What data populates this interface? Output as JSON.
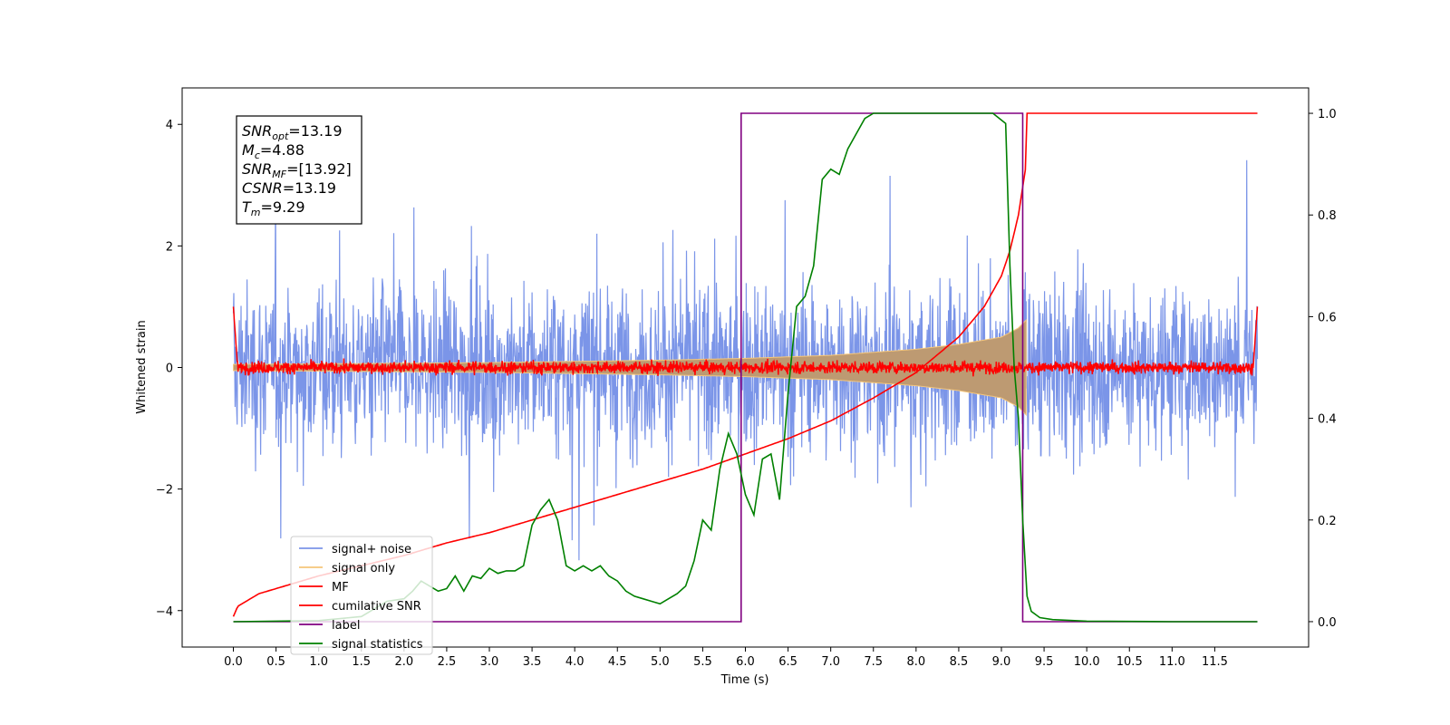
{
  "chart_data": {
    "type": "line",
    "title": "",
    "xlabel": "Time (s)",
    "ylabel": "Whitened strain",
    "xlim": [
      -0.6,
      12.6
    ],
    "ylim": [
      -4.6,
      4.6
    ],
    "y2lim": [
      -0.05,
      1.05
    ],
    "x_ticks": [
      0.0,
      0.5,
      1.0,
      1.5,
      2.0,
      2.5,
      3.0,
      3.5,
      4.0,
      4.5,
      5.0,
      5.5,
      6.0,
      6.5,
      7.0,
      7.5,
      8.0,
      8.5,
      9.0,
      9.5,
      10.0,
      10.5,
      11.0,
      11.5
    ],
    "x_tick_labels": [
      "0.0",
      "0.5",
      "1.0",
      "1.5",
      "2.0",
      "2.5",
      "3.0",
      "3.5",
      "4.0",
      "4.5",
      "5.0",
      "5.5",
      "6.0",
      "6.5",
      "7.0",
      "7.5",
      "8.0",
      "8.5",
      "9.0",
      "9.5",
      "10.0",
      "10.5",
      "11.0",
      "11.5"
    ],
    "y_ticks": [
      -4,
      -2,
      0,
      2,
      4
    ],
    "y_tick_labels": [
      "−4",
      "−2",
      "0",
      "2",
      "4"
    ],
    "y2_ticks": [
      0.0,
      0.2,
      0.4,
      0.6,
      0.8,
      1.0
    ],
    "y2_tick_labels": [
      "0.0",
      "0.2",
      "0.4",
      "0.6",
      "0.8",
      "1.0"
    ],
    "grid": false,
    "legend_placement": "lower-left",
    "annotation": {
      "lines": [
        {
          "sym": "SNR",
          "sub": "opt",
          "val": "=13.19"
        },
        {
          "sym": "M",
          "sub": "c",
          "val": "=4.88"
        },
        {
          "sym": "SNR",
          "sub": "MF",
          "val": "=[13.92]"
        },
        {
          "sym": "CSNR",
          "sub": "",
          "val": "=13.19"
        },
        {
          "sym": "T",
          "sub": "m",
          "val": "=9.29"
        }
      ]
    },
    "series": [
      {
        "name": "signal+ noise",
        "color": "#7b95e8",
        "axis": "left",
        "kind": "noise",
        "x_range": [
          0.0,
          12.0
        ],
        "amplitude_typical": 1.6,
        "amplitude_peak": 4.1
      },
      {
        "name": "signal only",
        "color": "#f5c67a",
        "axis": "left",
        "kind": "chirp_envelope",
        "x": [
          0.0,
          1.0,
          2.0,
          3.0,
          4.0,
          5.0,
          6.0,
          7.0,
          8.0,
          8.5,
          9.0,
          9.2,
          9.29,
          9.3
        ],
        "envelope": [
          0.05,
          0.06,
          0.07,
          0.08,
          0.1,
          0.12,
          0.15,
          0.2,
          0.3,
          0.38,
          0.5,
          0.65,
          0.78,
          0.0
        ]
      },
      {
        "name": "MF",
        "color": "#ff0000",
        "axis": "left",
        "kind": "mf",
        "x_range": [
          0.0,
          12.0
        ],
        "baseline": 0.0,
        "noise": 0.07,
        "edge_value": 1.0
      },
      {
        "name": "cumilative SNR",
        "color": "#ff0000",
        "axis": "right",
        "x": [
          0.0,
          0.05,
          0.3,
          0.6,
          1.0,
          1.5,
          2.0,
          2.5,
          3.0,
          3.5,
          4.0,
          4.5,
          5.0,
          5.5,
          6.0,
          6.5,
          7.0,
          7.5,
          8.0,
          8.5,
          8.8,
          9.0,
          9.1,
          9.2,
          9.29,
          9.3,
          12.0
        ],
        "y": [
          0.01,
          0.03,
          0.055,
          0.07,
          0.09,
          0.11,
          0.13,
          0.155,
          0.175,
          0.2,
          0.225,
          0.25,
          0.275,
          0.3,
          0.33,
          0.36,
          0.395,
          0.44,
          0.49,
          0.56,
          0.62,
          0.68,
          0.73,
          0.8,
          0.9,
          1.0,
          1.0
        ]
      },
      {
        "name": "label",
        "color": "#800080",
        "axis": "right",
        "x": [
          0.0,
          5.95,
          5.95,
          9.25,
          9.25,
          12.0
        ],
        "y": [
          0.0,
          0.0,
          1.0,
          1.0,
          0.0,
          0.0
        ]
      },
      {
        "name": "signal statistics",
        "color": "#008000",
        "axis": "right",
        "x": [
          0.0,
          0.5,
          1.0,
          1.5,
          1.8,
          2.0,
          2.1,
          2.2,
          2.3,
          2.4,
          2.5,
          2.6,
          2.7,
          2.8,
          2.9,
          3.0,
          3.1,
          3.2,
          3.3,
          3.4,
          3.5,
          3.6,
          3.7,
          3.8,
          3.9,
          4.0,
          4.1,
          4.2,
          4.3,
          4.4,
          4.5,
          4.6,
          4.7,
          4.8,
          4.9,
          5.0,
          5.1,
          5.2,
          5.3,
          5.4,
          5.5,
          5.6,
          5.7,
          5.8,
          5.9,
          6.0,
          6.1,
          6.2,
          6.3,
          6.4,
          6.5,
          6.6,
          6.7,
          6.8,
          6.9,
          7.0,
          7.1,
          7.2,
          7.3,
          7.4,
          7.5,
          7.7,
          7.9,
          8.1,
          8.3,
          8.5,
          8.7,
          8.9,
          9.05,
          9.1,
          9.15,
          9.2,
          9.25,
          9.3,
          9.35,
          9.45,
          9.6,
          10.0,
          11.0,
          12.0
        ],
        "y": [
          0.0,
          0.001,
          0.002,
          0.01,
          0.04,
          0.045,
          0.06,
          0.08,
          0.07,
          0.06,
          0.065,
          0.09,
          0.06,
          0.09,
          0.085,
          0.105,
          0.095,
          0.1,
          0.1,
          0.11,
          0.19,
          0.22,
          0.24,
          0.2,
          0.11,
          0.1,
          0.11,
          0.1,
          0.11,
          0.09,
          0.08,
          0.06,
          0.05,
          0.045,
          0.04,
          0.035,
          0.045,
          0.055,
          0.07,
          0.12,
          0.2,
          0.18,
          0.3,
          0.37,
          0.33,
          0.25,
          0.21,
          0.32,
          0.33,
          0.24,
          0.45,
          0.62,
          0.64,
          0.7,
          0.87,
          0.89,
          0.88,
          0.93,
          0.96,
          0.99,
          1.0,
          1.0,
          1.0,
          1.0,
          1.0,
          1.0,
          1.0,
          1.0,
          0.98,
          0.7,
          0.5,
          0.4,
          0.2,
          0.05,
          0.02,
          0.008,
          0.004,
          0.001,
          0.0,
          0.0
        ]
      }
    ]
  }
}
